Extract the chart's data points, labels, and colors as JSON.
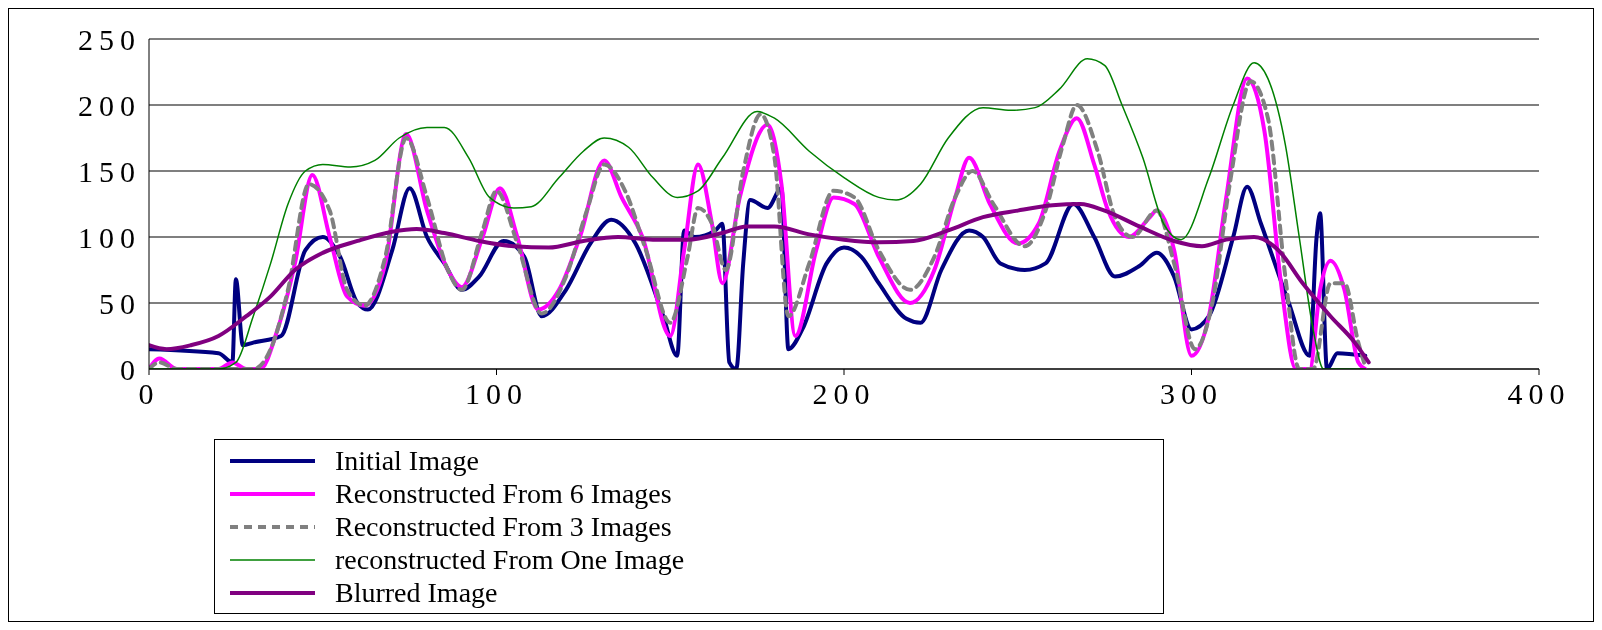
{
  "chart_data": {
    "type": "line",
    "xlim": [
      0,
      400
    ],
    "xticks": [
      0,
      100,
      200,
      300,
      400
    ],
    "ylim": [
      0,
      250
    ],
    "yticks": [
      0,
      50,
      100,
      150,
      200,
      250
    ],
    "grid": "y",
    "legend": "bottom",
    "marker": "none",
    "series": [
      {
        "name": "Initial Image",
        "color": "#000080",
        "line_style": "solid",
        "x": [
          0,
          20,
          24,
          25,
          27,
          30,
          38,
          45,
          50,
          55,
          60,
          63,
          70,
          75,
          80,
          85,
          90,
          95,
          102,
          108,
          113,
          120,
          127,
          133,
          140,
          148,
          152,
          154,
          157,
          163,
          165,
          167,
          169,
          171,
          173,
          178,
          182,
          184,
          188,
          195,
          200,
          205,
          210,
          218,
          222,
          228,
          236,
          240,
          245,
          252,
          258,
          266,
          272,
          278,
          285,
          290,
          295,
          300,
          305,
          312,
          316,
          320,
          328,
          334,
          336,
          337,
          339,
          342,
          350
        ],
        "values": [
          15,
          12,
          5,
          68,
          18,
          20,
          25,
          90,
          100,
          85,
          50,
          45,
          90,
          137,
          100,
          80,
          60,
          70,
          97,
          85,
          40,
          60,
          95,
          113,
          95,
          40,
          10,
          105,
          100,
          105,
          110,
          5,
          0,
          80,
          128,
          122,
          137,
          15,
          30,
          80,
          92,
          85,
          65,
          38,
          35,
          75,
          105,
          100,
          80,
          75,
          80,
          125,
          100,
          70,
          78,
          88,
          70,
          30,
          40,
          100,
          138,
          110,
          50,
          10,
          100,
          118,
          0,
          12,
          10
        ]
      },
      {
        "name": "Reconstructed From 6 Images",
        "color": "#ff00ff",
        "line_style": "solid",
        "x": [
          0,
          3,
          8,
          20,
          24,
          28,
          32,
          37,
          42,
          47,
          52,
          57,
          62,
          68,
          74,
          80,
          86,
          90,
          96,
          101,
          106,
          112,
          118,
          124,
          131,
          136,
          142,
          150,
          154,
          158,
          162,
          165,
          170,
          178,
          182,
          186,
          192,
          197,
          203,
          210,
          219,
          226,
          232,
          236,
          242,
          250,
          256,
          262,
          267,
          272,
          276,
          282,
          288,
          290,
          295,
          300,
          305,
          310,
          316,
          321,
          326,
          330,
          334,
          337,
          340,
          344,
          348,
          350
        ],
        "values": [
          0,
          8,
          0,
          0,
          5,
          0,
          0,
          30,
          80,
          147,
          100,
          55,
          48,
          80,
          178,
          120,
          75,
          62,
          100,
          137,
          100,
          45,
          60,
          100,
          158,
          130,
          100,
          25,
          90,
          155,
          110,
          65,
          130,
          185,
          140,
          25,
          90,
          130,
          125,
          85,
          50,
          75,
          130,
          160,
          125,
          95,
          110,
          165,
          190,
          155,
          120,
          100,
          115,
          120,
          90,
          10,
          40,
          130,
          220,
          180,
          60,
          0,
          0,
          60,
          82,
          60,
          5,
          0
        ]
      },
      {
        "name": "Reconstructed From 3 Images",
        "color": "#808080",
        "line_style": "dashed",
        "x": [
          0,
          3,
          8,
          22,
          30,
          35,
          40,
          46,
          52,
          57,
          62,
          68,
          74,
          80,
          86,
          90,
          96,
          100,
          106,
          113,
          120,
          126,
          131,
          137,
          143,
          150,
          155,
          158,
          162,
          166,
          171,
          176,
          180,
          184,
          190,
          197,
          203,
          210,
          219,
          226,
          232,
          237,
          243,
          252,
          258,
          263,
          267,
          273,
          278,
          283,
          290,
          295,
          301,
          306,
          311,
          317,
          322,
          327,
          331,
          335,
          340,
          344,
          348,
          350
        ],
        "values": [
          0,
          5,
          0,
          0,
          0,
          15,
          60,
          140,
          120,
          60,
          48,
          85,
          175,
          130,
          75,
          60,
          105,
          135,
          95,
          42,
          70,
          120,
          155,
          135,
          90,
          35,
          85,
          122,
          110,
          75,
          150,
          193,
          160,
          40,
          80,
          135,
          130,
          90,
          60,
          85,
          130,
          150,
          125,
          93,
          120,
          170,
          200,
          165,
          115,
          100,
          120,
          80,
          15,
          50,
          140,
          218,
          190,
          70,
          0,
          0,
          65,
          65,
          20,
          2
        ]
      },
      {
        "name": "reconstructed From One Image",
        "color": "#008000",
        "line_style": "solid",
        "x": [
          0,
          10,
          20,
          25,
          30,
          35,
          40,
          45,
          50,
          58,
          65,
          72,
          80,
          85,
          92,
          98,
          105,
          110,
          118,
          125,
          131,
          138,
          145,
          152,
          158,
          165,
          175,
          180,
          190,
          200,
          210,
          215,
          222,
          230,
          240,
          248,
          255,
          262,
          270,
          275,
          280,
          286,
          292,
          297,
          305,
          312,
          318,
          322,
          327,
          331,
          335,
          338,
          345,
          350
        ],
        "values": [
          0,
          0,
          0,
          5,
          40,
          80,
          125,
          150,
          155,
          153,
          158,
          175,
          183,
          183,
          160,
          130,
          122,
          123,
          145,
          165,
          175,
          168,
          145,
          130,
          135,
          160,
          195,
          190,
          165,
          145,
          130,
          128,
          140,
          175,
          198,
          196,
          198,
          212,
          235,
          230,
          200,
          160,
          110,
          98,
          145,
          200,
          232,
          220,
          170,
          100,
          30,
          0,
          0,
          0
        ]
      },
      {
        "name": "Blurred Image",
        "color": "#800080",
        "line_style": "solid",
        "x": [
          0,
          5,
          12,
          20,
          28,
          35,
          42,
          50,
          60,
          70,
          77,
          85,
          95,
          105,
          115,
          125,
          135,
          145,
          155,
          165,
          172,
          180,
          190,
          200,
          210,
          220,
          230,
          240,
          250,
          260,
          268,
          275,
          285,
          295,
          303,
          310,
          318,
          325,
          332,
          340,
          347,
          351
        ],
        "values": [
          18,
          15,
          18,
          25,
          40,
          55,
          75,
          88,
          97,
          104,
          106,
          103,
          97,
          93,
          92,
          97,
          100,
          98,
          98,
          103,
          108,
          108,
          102,
          98,
          96,
          97,
          105,
          115,
          120,
          124,
          125,
          120,
          108,
          97,
          93,
          98,
          100,
          90,
          65,
          40,
          20,
          5
        ]
      }
    ]
  }
}
